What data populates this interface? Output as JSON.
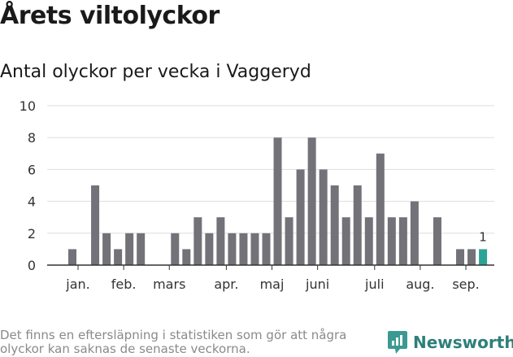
{
  "header": {
    "title": "Årets viltolyckor",
    "subtitle": "Antal olyckor per vecka i Vaggeryd"
  },
  "footer": {
    "note": "Det finns en eftersläpning i statistiken som gör att några olyckor kan saknas de senaste veckorna.",
    "brand": "Newsworthy"
  },
  "chart_data": {
    "type": "bar",
    "title": "Antal olyckor per vecka i Vaggeryd",
    "xlabel": "",
    "ylabel": "",
    "weeks": [
      1,
      2,
      3,
      4,
      5,
      6,
      7,
      8,
      9,
      10,
      11,
      12,
      13,
      14,
      15,
      16,
      17,
      18,
      19,
      20,
      21,
      22,
      23,
      24,
      25,
      26,
      27,
      28,
      29,
      30,
      31,
      32,
      33,
      34,
      35,
      36,
      37,
      38
    ],
    "values": [
      0,
      1,
      0,
      5,
      2,
      1,
      2,
      2,
      0,
      0,
      2,
      1,
      3,
      2,
      3,
      2,
      2,
      2,
      2,
      8,
      3,
      6,
      8,
      6,
      5,
      3,
      5,
      3,
      7,
      3,
      3,
      4,
      0,
      3,
      0,
      1,
      1,
      1
    ],
    "highlight_index": 37,
    "highlight_label": "1",
    "ylim": [
      0,
      10
    ],
    "yticks": [
      0,
      2,
      4,
      6,
      8,
      10
    ],
    "xticks": [
      {
        "label": "jan.",
        "week": 2.5
      },
      {
        "label": "feb.",
        "week": 6.5
      },
      {
        "label": "mars",
        "week": 10.5
      },
      {
        "label": "apr.",
        "week": 15.5
      },
      {
        "label": "maj",
        "week": 19.5
      },
      {
        "label": "juni",
        "week": 23.5
      },
      {
        "label": "juli",
        "week": 28.5
      },
      {
        "label": "aug.",
        "week": 32.5
      },
      {
        "label": "sep.",
        "week": 36.5
      }
    ],
    "grid": true,
    "colors": {
      "bar": "#737278",
      "highlight": "#2aa397",
      "grid": "#dddddd",
      "axis": "#333333"
    }
  }
}
